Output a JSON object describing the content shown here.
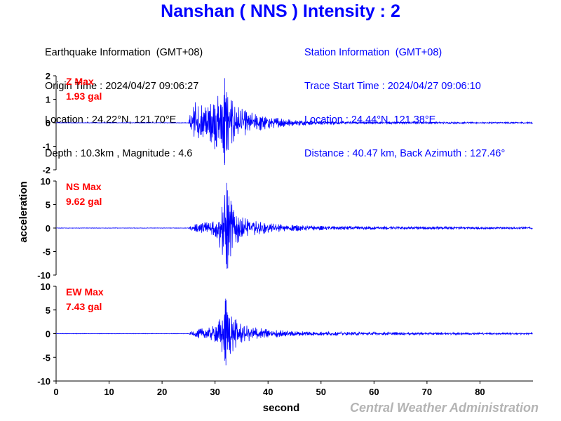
{
  "header": {
    "title": "Nanshan ( NNS ) Intensity : 2",
    "earthquake": {
      "heading": "Earthquake Information  (GMT+08)",
      "origin_time": "Origin Time : 2024/04/27 09:06:27",
      "location": "Location : 24.22°N, 121.70°E",
      "depth_magnitude": "Depth : 10.3km , Magnitude : 4.6"
    },
    "station": {
      "heading": "Station Information  (GMT+08)",
      "trace_start": "Trace Start Time : 2024/04/27 09:06:10",
      "location": "Location : 24.44°N, 121.38°E",
      "distance": "Distance : 40.47 km, Back Azimuth : 127.46°"
    }
  },
  "colors": {
    "title": "#0000ff",
    "trace": "#0000ff",
    "max_label": "#ff0000",
    "credit": "#b4b4b4"
  },
  "chart_data": {
    "type": "line",
    "xlabel": "second",
    "ylabel": "acceleration",
    "x_ticks": [
      0,
      10,
      20,
      30,
      40,
      50,
      60,
      70,
      80
    ],
    "xlim": [
      0,
      90
    ],
    "credit": "Central Weather Administration",
    "panels": [
      {
        "component": "Z",
        "max_label": "Z Max",
        "max_value": "1.93 gal",
        "ylim": [
          -2,
          2
        ],
        "y_ticks": [
          2,
          1,
          0,
          -1,
          -2
        ],
        "envelope": [
          [
            0,
            0.01
          ],
          [
            25,
            0.01
          ],
          [
            25.3,
            0.4
          ],
          [
            26,
            0.9
          ],
          [
            27,
            0.8
          ],
          [
            28.5,
            0.6
          ],
          [
            29.5,
            0.9
          ],
          [
            30.3,
            1.3
          ],
          [
            31,
            0.9
          ],
          [
            31.5,
            1.6
          ],
          [
            31.8,
            1.9
          ],
          [
            32.3,
            1.3
          ],
          [
            33,
            1.0
          ],
          [
            34,
            0.7
          ],
          [
            36,
            0.5
          ],
          [
            38,
            0.35
          ],
          [
            40,
            0.25
          ],
          [
            45,
            0.12
          ],
          [
            50,
            0.08
          ],
          [
            60,
            0.05
          ],
          [
            70,
            0.04
          ],
          [
            80,
            0.03
          ],
          [
            90,
            0.03
          ]
        ]
      },
      {
        "component": "NS",
        "max_label": "NS Max",
        "max_value": "9.62 gal",
        "ylim": [
          -10,
          10
        ],
        "y_ticks": [
          10,
          5,
          0,
          -5,
          -10
        ],
        "envelope": [
          [
            0,
            0.05
          ],
          [
            25,
            0.05
          ],
          [
            25.5,
            0.5
          ],
          [
            27,
            1.0
          ],
          [
            29,
            1.5
          ],
          [
            30.3,
            2.5
          ],
          [
            31,
            4.5
          ],
          [
            31.8,
            7.0
          ],
          [
            32.2,
            9.6
          ],
          [
            32.8,
            6.5
          ],
          [
            33.5,
            4.0
          ],
          [
            35,
            2.3
          ],
          [
            37,
            1.6
          ],
          [
            40,
            1.0
          ],
          [
            45,
            0.6
          ],
          [
            50,
            0.45
          ],
          [
            60,
            0.35
          ],
          [
            70,
            0.3
          ],
          [
            80,
            0.25
          ],
          [
            90,
            0.25
          ]
        ]
      },
      {
        "component": "EW",
        "max_label": "EW Max",
        "max_value": "7.43 gal",
        "ylim": [
          -10,
          10
        ],
        "y_ticks": [
          10,
          5,
          0,
          -5,
          -10
        ],
        "envelope": [
          [
            0,
            0.05
          ],
          [
            25,
            0.05
          ],
          [
            25.5,
            0.5
          ],
          [
            27,
            1.0
          ],
          [
            29,
            1.3
          ],
          [
            30.5,
            2.0
          ],
          [
            31.5,
            4.5
          ],
          [
            32,
            7.4
          ],
          [
            32.8,
            4.5
          ],
          [
            33.5,
            3.5
          ],
          [
            35,
            2.0
          ],
          [
            37,
            1.4
          ],
          [
            40,
            0.9
          ],
          [
            45,
            0.5
          ],
          [
            50,
            0.4
          ],
          [
            60,
            0.3
          ],
          [
            70,
            0.25
          ],
          [
            80,
            0.2
          ],
          [
            90,
            0.2
          ]
        ]
      }
    ]
  }
}
